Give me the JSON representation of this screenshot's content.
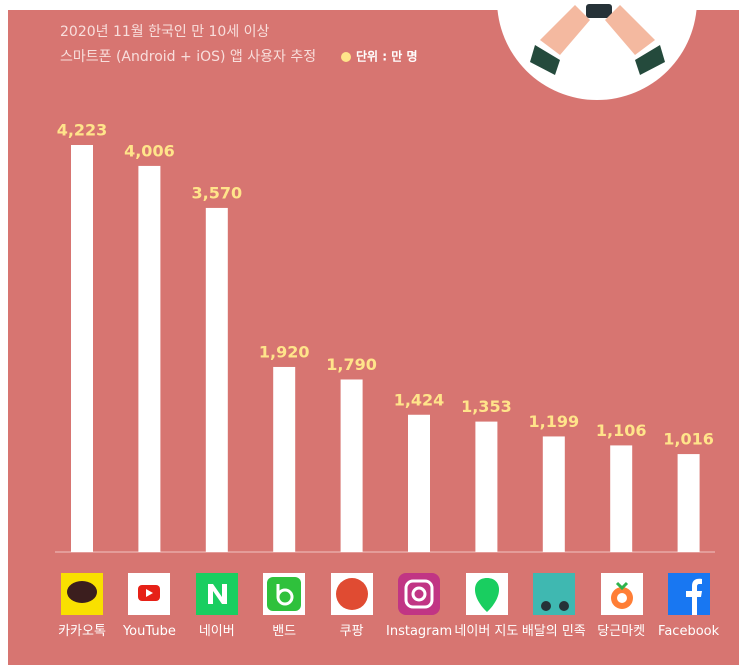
{
  "chart_data": {
    "type": "bar",
    "subtitle": [
      "2020년 11월 한국인 만 10세 이상",
      "스마트폰 (Android + iOS) 앱 사용자 추정"
    ],
    "legend": "단위 : 만 명",
    "categories": [
      "카카오톡",
      "YouTube",
      "네이버",
      "밴드",
      "쿠팡",
      "Instagram",
      "네이버 지도",
      "배달의 민족",
      "당근마켓",
      "Facebook"
    ],
    "values": [
      4223,
      4006,
      3570,
      1920,
      1790,
      1424,
      1353,
      1199,
      1106,
      1016
    ],
    "value_labels": [
      "4,223",
      "4,006",
      "3,570",
      "1,920",
      "1,790",
      "1,424",
      "1,353",
      "1,199",
      "1,106",
      "1,016"
    ],
    "color": "#ffffff"
  }
}
